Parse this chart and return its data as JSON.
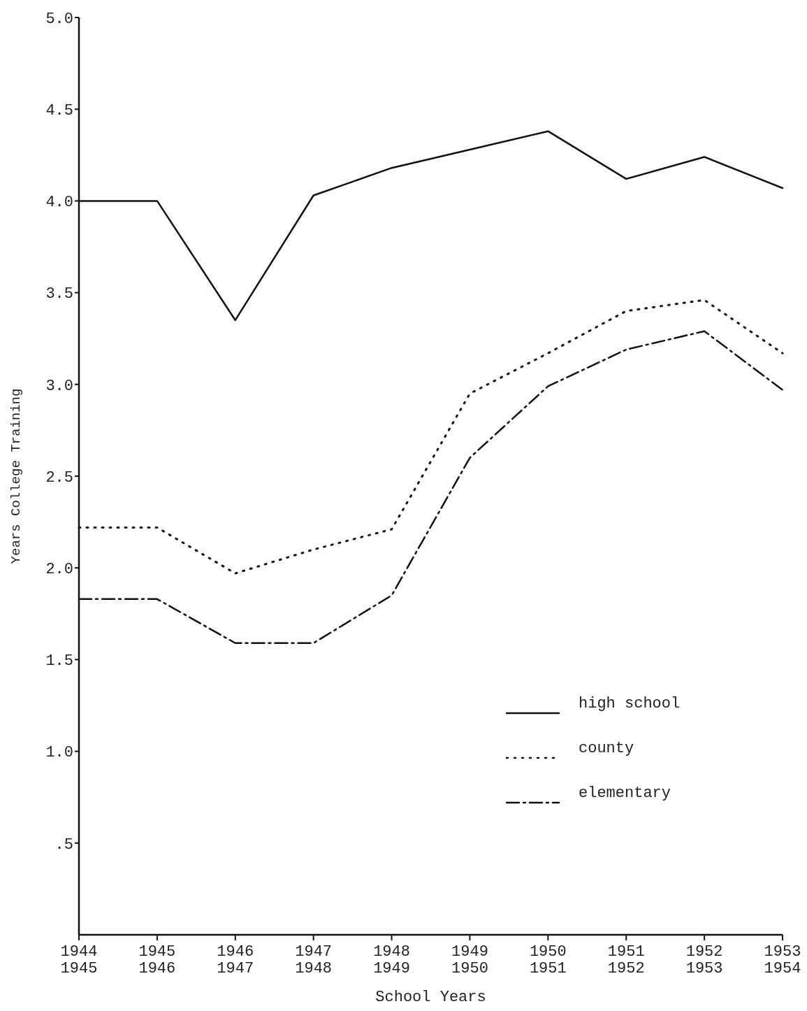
{
  "chart_data": {
    "type": "line",
    "xlabel": "School Years",
    "ylabel": "Years College Training",
    "categories": [
      "1944\n1945",
      "1945\n1946",
      "1946\n1947",
      "1947\n1948",
      "1948\n1949",
      "1949\n1950",
      "1950\n1951",
      "1951\n1952",
      "1952\n1953",
      "1953\n1954"
    ],
    "series": [
      {
        "name": "high school",
        "color": "#111111",
        "line_style": "solid",
        "values": [
          4.0,
          4.0,
          3.35,
          4.03,
          4.18,
          4.28,
          4.38,
          4.12,
          4.24,
          4.07
        ]
      },
      {
        "name": "county",
        "color": "#111111",
        "line_style": "dotted",
        "values": [
          2.22,
          2.22,
          1.97,
          2.1,
          2.21,
          2.95,
          3.17,
          3.4,
          3.46,
          3.17
        ]
      },
      {
        "name": "elementary",
        "color": "#111111",
        "line_style": "dashed",
        "values": [
          1.83,
          1.83,
          1.59,
          1.59,
          1.85,
          2.6,
          2.99,
          3.19,
          3.29,
          2.97
        ]
      }
    ],
    "ylim": [
      0,
      5
    ],
    "yticks": [
      {
        "value": 0.5,
        "label": ".5"
      },
      {
        "value": 1,
        "label": "1.0"
      },
      {
        "value": 1.5,
        "label": "1.5"
      },
      {
        "value": 2,
        "label": "2.0"
      },
      {
        "value": 2.5,
        "label": "2.5"
      },
      {
        "value": 3,
        "label": "3.0"
      },
      {
        "value": 3.5,
        "label": "3.5"
      },
      {
        "value": 4,
        "label": "4.0"
      },
      {
        "value": 4.5,
        "label": "4.5"
      },
      {
        "value": 5,
        "label": "5.0"
      }
    ],
    "grid": false,
    "legend": "bottom right"
  }
}
